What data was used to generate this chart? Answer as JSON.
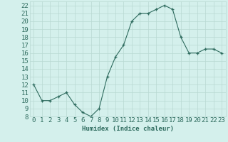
{
  "x": [
    0,
    1,
    2,
    3,
    4,
    5,
    6,
    7,
    8,
    9,
    10,
    11,
    12,
    13,
    14,
    15,
    16,
    17,
    18,
    19,
    20,
    21,
    22,
    23
  ],
  "y": [
    12,
    10,
    10,
    10.5,
    11,
    9.5,
    8.5,
    8,
    9,
    13,
    15.5,
    17,
    20,
    21,
    21,
    21.5,
    22,
    21.5,
    18,
    16,
    16,
    16.5,
    16.5,
    16
  ],
  "xlabel": "Humidex (Indice chaleur)",
  "ylabel": "",
  "xlim": [
    -0.5,
    23.5
  ],
  "ylim": [
    8,
    22.5
  ],
  "yticks": [
    8,
    9,
    10,
    11,
    12,
    13,
    14,
    15,
    16,
    17,
    18,
    19,
    20,
    21,
    22
  ],
  "xticks": [
    0,
    1,
    2,
    3,
    4,
    5,
    6,
    7,
    8,
    9,
    10,
    11,
    12,
    13,
    14,
    15,
    16,
    17,
    18,
    19,
    20,
    21,
    22,
    23
  ],
  "line_color": "#2e6b5e",
  "marker_color": "#2e6b5e",
  "bg_color": "#d4f0ec",
  "grid_color": "#b8d8d2",
  "tick_label_color": "#2e6b5e",
  "xlabel_color": "#2e6b5e",
  "font_size": 6.5
}
